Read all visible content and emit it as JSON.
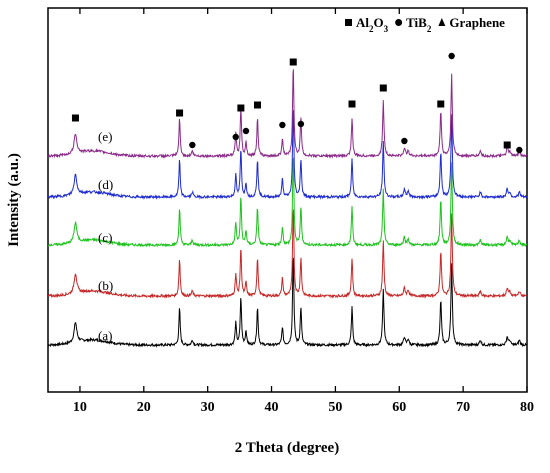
{
  "chart_data": {
    "type": "line",
    "title": "",
    "xlabel": "2 Theta (degree)",
    "ylabel": "Intensity (a.u.)",
    "xlim": [
      5,
      80
    ],
    "xticks": [
      10,
      20,
      30,
      40,
      50,
      60,
      70,
      80
    ],
    "yticks": [],
    "grid": false,
    "legend_position": "top-right",
    "legend": [
      {
        "marker": "square",
        "label_main": "Al",
        "sub1": "2",
        "mid": "O",
        "sub2": "3"
      },
      {
        "marker": "circle",
        "label_main": "TiB",
        "sub1": "2",
        "mid": "",
        "sub2": ""
      },
      {
        "marker": "triangle",
        "label_main": "Graphene",
        "sub1": "",
        "mid": "",
        "sub2": ""
      }
    ],
    "series": [
      {
        "name": "(a)",
        "color": "#000000"
      },
      {
        "name": "(b)",
        "color": "#c62828"
      },
      {
        "name": "(c)",
        "color": "#1ec21e"
      },
      {
        "name": "(d)",
        "color": "#1d2bd0"
      },
      {
        "name": "(e)",
        "color": "#8a2b8a"
      }
    ],
    "peak_markers": [
      {
        "marker": "square",
        "x": 9.3
      },
      {
        "marker": "square",
        "x": 25.6
      },
      {
        "marker": "circle",
        "x": 27.6
      },
      {
        "marker": "circle",
        "x": 34.4
      },
      {
        "marker": "square",
        "x": 35.2
      },
      {
        "marker": "circle",
        "x": 36.0
      },
      {
        "marker": "square",
        "x": 37.8
      },
      {
        "marker": "circle",
        "x": 41.7
      },
      {
        "marker": "square",
        "x": 43.4
      },
      {
        "marker": "circle",
        "x": 44.6
      },
      {
        "marker": "square",
        "x": 52.6
      },
      {
        "marker": "square",
        "x": 57.5
      },
      {
        "marker": "circle",
        "x": 60.8
      },
      {
        "marker": "square",
        "x": 66.5
      },
      {
        "marker": "circle",
        "x": 68.2
      },
      {
        "marker": "square",
        "x": 76.9
      },
      {
        "marker": "circle",
        "x": 78.8
      }
    ]
  }
}
